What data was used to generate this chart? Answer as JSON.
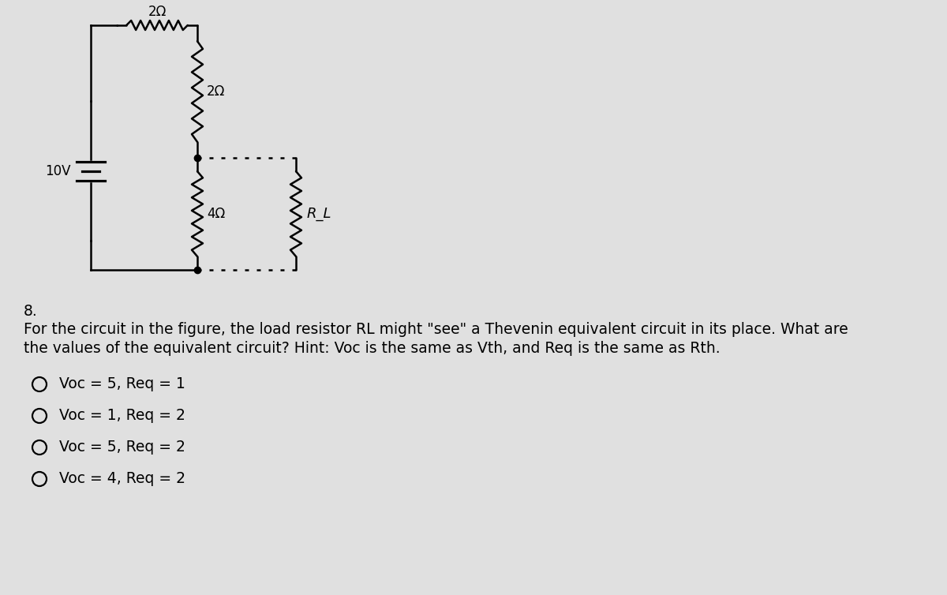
{
  "bg_color": "#e0e0e0",
  "question_number": "8.",
  "question_line1": "For the circuit in the figure, the load resistor RL might \"see\" a Thevenin equivalent circuit in its place. What are",
  "question_line2": "the values of the equivalent circuit? Hint: Voc is the same as Vth, and Req is the same as Rth.",
  "options": [
    "Voc = 5, Req = 1",
    "Voc = 1, Req = 2",
    "Voc = 5, Req = 2",
    "Voc = 4, Req = 2"
  ],
  "circuit": {
    "voltage_label": "10V",
    "r_top_label": "2Ω",
    "r_mid_label": "2Ω",
    "r_bot_label": "4Ω",
    "r_load_label": "R_L"
  },
  "lw": 1.8,
  "fs_circuit": 12,
  "fs_text": 13.5,
  "fs_options": 13.5
}
